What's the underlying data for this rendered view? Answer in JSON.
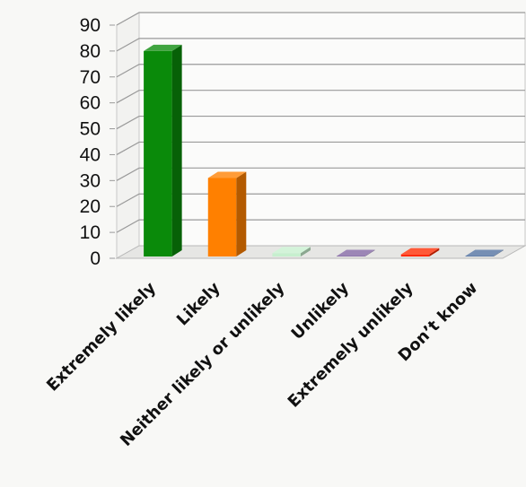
{
  "chart_data": {
    "type": "bar",
    "title": "",
    "xlabel": "",
    "ylabel": "",
    "ylim": [
      0,
      90
    ],
    "yticks": [
      0,
      10,
      20,
      30,
      40,
      50,
      60,
      70,
      80,
      90
    ],
    "grid": true,
    "style": "3d-column",
    "categories": [
      "Extremely likely",
      "Likely",
      "Neither likely or unlikely",
      "Unlikely",
      "Extremely unlikely",
      "Don’t know"
    ],
    "values": [
      80,
      31,
      2,
      0.5,
      1.5,
      0.5
    ],
    "colors": [
      "#0a8a0a",
      "#ff8000",
      "#c6efce",
      "#8064a2",
      "#ff2a00",
      "#4f6f9f"
    ]
  }
}
